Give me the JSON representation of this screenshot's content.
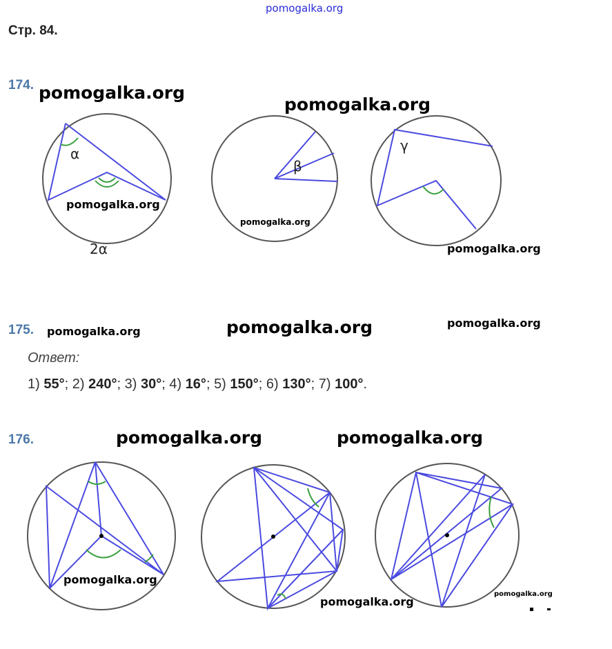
{
  "watermark": "pomogalka.org",
  "page_header": "Стр. 84.",
  "tasks": {
    "t174": {
      "number": "174.",
      "labels": {
        "alpha": "α",
        "two_alpha": "2α",
        "beta": "β",
        "gamma": "γ"
      }
    },
    "t175": {
      "number": "175.",
      "answer_label": "Ответ:",
      "answers": [
        {
          "n": "1)",
          "v": "55°"
        },
        {
          "n": "2)",
          "v": "240°"
        },
        {
          "n": "3)",
          "v": "30°"
        },
        {
          "n": "4)",
          "v": "16°"
        },
        {
          "n": "5)",
          "v": "150°"
        },
        {
          "n": "6)",
          "v": "130°"
        },
        {
          "n": "7)",
          "v": "100°"
        }
      ]
    },
    "t176": {
      "number": "176."
    }
  },
  "colors": {
    "line": "#4a4ae0",
    "arc": "#3aa040",
    "circle": "#555555",
    "number": "#4a78a8"
  }
}
